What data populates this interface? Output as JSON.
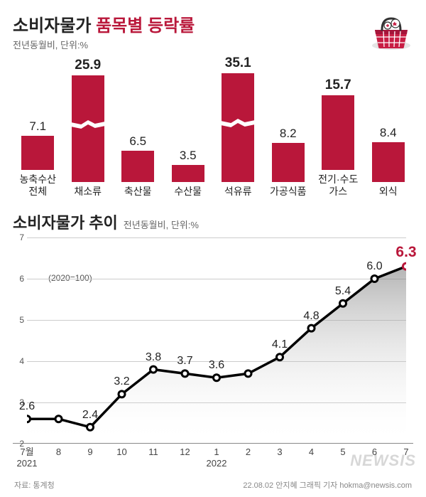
{
  "topChart": {
    "title_pre": "소비자물가 ",
    "title_accent": "품목별 등락률",
    "subtitle": "전년동월비, 단위:%",
    "bar_color": "#b9173a",
    "value_fontsize": 17,
    "big_value_fontsize": 19,
    "label_fontsize": 14,
    "max_display_height": 150,
    "bars": [
      {
        "label": "농축수산\n전체",
        "value": 7.1,
        "display_h": 48,
        "broken": false,
        "big": false
      },
      {
        "label": "채소류",
        "value": 25.9,
        "display_h": 150,
        "broken": true,
        "big": true
      },
      {
        "label": "축산물",
        "value": 6.5,
        "display_h": 44,
        "broken": false,
        "big": false
      },
      {
        "label": "수산물",
        "value": 3.5,
        "display_h": 24,
        "broken": false,
        "big": false
      },
      {
        "label": "석유류",
        "value": 35.1,
        "display_h": 160,
        "broken": true,
        "big": true
      },
      {
        "label": "가공식품",
        "value": 8.2,
        "display_h": 55,
        "broken": false,
        "big": false
      },
      {
        "label": "전기·수도\n가스",
        "value": 15.7,
        "display_h": 105,
        "broken": false,
        "big": true
      },
      {
        "label": "외식",
        "value": 8.4,
        "display_h": 56,
        "broken": false,
        "big": false
      }
    ]
  },
  "lineChart": {
    "title": "소비자물가 추이",
    "subtitle": "전년동월비, 단위:%",
    "base_note": "(2020=100)",
    "ylim": [
      2,
      7
    ],
    "yticks": [
      2,
      3,
      4,
      5,
      6,
      7
    ],
    "grid_color": "#cccccc",
    "line_color": "#000000",
    "line_width": 3.5,
    "marker_outer_r": 6,
    "marker_inner_r": 3,
    "last_color": "#b9173a",
    "points": [
      {
        "x": 0,
        "xlabel": "7월\n2021",
        "value": 2.6,
        "show_label": true
      },
      {
        "x": 1,
        "xlabel": "8",
        "value": 2.6,
        "show_label": false
      },
      {
        "x": 2,
        "xlabel": "9",
        "value": 2.4,
        "show_label": true
      },
      {
        "x": 3,
        "xlabel": "10",
        "value": 3.2,
        "show_label": true
      },
      {
        "x": 4,
        "xlabel": "11",
        "value": 3.8,
        "show_label": true
      },
      {
        "x": 5,
        "xlabel": "12",
        "value": 3.7,
        "show_label": true
      },
      {
        "x": 6,
        "xlabel": "1\n2022",
        "value": 3.6,
        "show_label": true
      },
      {
        "x": 7,
        "xlabel": "2",
        "value": 3.7,
        "show_label": false
      },
      {
        "x": 8,
        "xlabel": "3",
        "value": 4.1,
        "show_label": true
      },
      {
        "x": 9,
        "xlabel": "4",
        "value": 4.8,
        "show_label": true
      },
      {
        "x": 10,
        "xlabel": "5",
        "value": 5.4,
        "show_label": true
      },
      {
        "x": 11,
        "xlabel": "6",
        "value": 6.0,
        "show_label": true
      },
      {
        "x": 12,
        "xlabel": "7",
        "value": 6.3,
        "show_label": true,
        "last": true
      }
    ]
  },
  "footer": {
    "source_label": "자료:",
    "source_value": "통계청",
    "watermark": "NEWSIS",
    "credit": "22.08.02 안지혜 그래픽 기자 hokma@newsis.com"
  }
}
